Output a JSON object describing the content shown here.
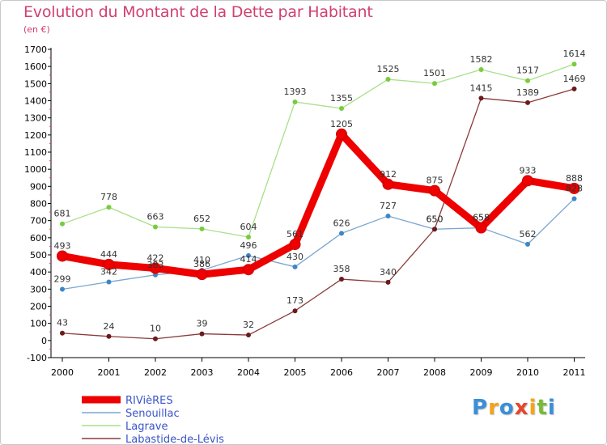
{
  "chart_data": {
    "type": "line",
    "title": "Evolution du Montant de la Dette par Habitant",
    "subtitle": "(en €)",
    "x": [
      "2000",
      "2001",
      "2002",
      "2003",
      "2004",
      "2005",
      "2006",
      "2007",
      "2008",
      "2009",
      "2010",
      "2011"
    ],
    "ylim": [
      -100,
      1700
    ],
    "yticks": [
      -100,
      0,
      100,
      200,
      300,
      400,
      500,
      600,
      700,
      800,
      900,
      1000,
      1100,
      1200,
      1300,
      1400,
      1500,
      1600,
      1700
    ],
    "grid": false,
    "legend": "bottom-left",
    "series": [
      {
        "name": "RIVièRES",
        "color": "#ee0000",
        "marker_color": "#ee0000",
        "values": [
          493,
          444,
          422,
          386,
          414,
          561,
          1205,
          912,
          875,
          658,
          933,
          888
        ]
      },
      {
        "name": "Senouillac",
        "color": "#7aa6cf",
        "marker_color": "#3e86c6",
        "values": [
          299,
          342,
          383,
          410,
          496,
          430,
          626,
          727,
          650,
          658,
          562,
          828
        ]
      },
      {
        "name": "Lagrave",
        "color": "#a8e08a",
        "marker_color": "#77cc3e",
        "values": [
          681,
          778,
          663,
          652,
          604,
          1393,
          1355,
          1525,
          1501,
          1582,
          1517,
          1614
        ]
      },
      {
        "name": "Labastide-de-Lévis",
        "color": "#8a3a3a",
        "marker_color": "#6b1b1b",
        "values": [
          43,
          24,
          10,
          39,
          32,
          173,
          358,
          340,
          650,
          1415,
          1389,
          1469
        ]
      }
    ]
  },
  "logo": {
    "letters": [
      "P",
      "r",
      "o",
      "x",
      "i",
      "t",
      "i"
    ],
    "colors": [
      "#3a8fd9",
      "#f4a41c",
      "#3a8fd9",
      "#e8452c",
      "#f4a41c",
      "#77bb33",
      "#3a8fd9"
    ]
  }
}
